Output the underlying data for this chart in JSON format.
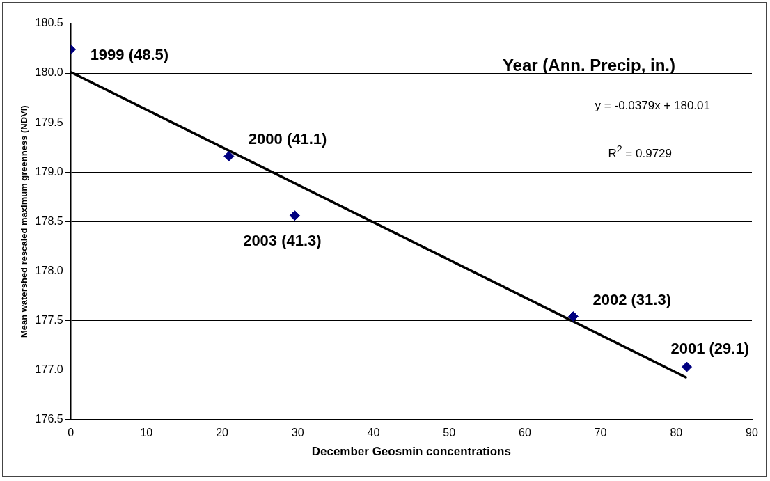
{
  "chart_data": {
    "type": "scatter",
    "xlabel": "December Geosmin concentrations",
    "ylabel": "Mean watershed rescaled maximum greenness (NDVI)",
    "xlim": [
      0,
      90
    ],
    "xticks": [
      0,
      10,
      20,
      30,
      40,
      50,
      60,
      70,
      80,
      90
    ],
    "ylim": [
      176.5,
      180.5
    ],
    "yticks": [
      {
        "value": 176.5,
        "label": "176.5"
      },
      {
        "value": 177,
        "label": "177.0"
      },
      {
        "value": 177.5,
        "label": "177.5"
      },
      {
        "value": 178,
        "label": "178.0"
      },
      {
        "value": 178.5,
        "label": "178.5"
      },
      {
        "value": 179,
        "label": "179.0"
      },
      {
        "value": 179.5,
        "label": "179.5"
      },
      {
        "value": 180,
        "label": "180.0"
      },
      {
        "value": 180.5,
        "label": "180.5"
      }
    ],
    "grid": "y",
    "legend": false,
    "marker": "diamond",
    "series": [
      {
        "color": "#000080",
        "x": [
          0,
          20.9,
          29.6,
          66.4,
          81.4
        ],
        "values": [
          180.24,
          179.16,
          178.56,
          177.54,
          177.03
        ]
      },
      {
        "type": "line",
        "color": "#000000",
        "marker": "none",
        "x": [
          0,
          81.4
        ],
        "values": [
          180.01,
          176.92
        ]
      }
    ],
    "annotations": [
      "Year (Ann. Precip, in.)",
      "y = -0.0379x + 180.01",
      "R$^{2}$ = 0.9729",
      {
        "text": "1999 (48.5)",
        "x": 0,
        "y": 180.24
      },
      {
        "text": "2000 (41.1)",
        "x": 20.9,
        "y": 179.16
      },
      {
        "text": "2003 (41.3)",
        "x": 29.6,
        "y": 178.56
      },
      {
        "text": "2002 (31.3)",
        "x": 66.4,
        "y": 177.54
      },
      {
        "text": "2001 (29.1)",
        "x": 81.4,
        "y": 177.03
      }
    ]
  }
}
